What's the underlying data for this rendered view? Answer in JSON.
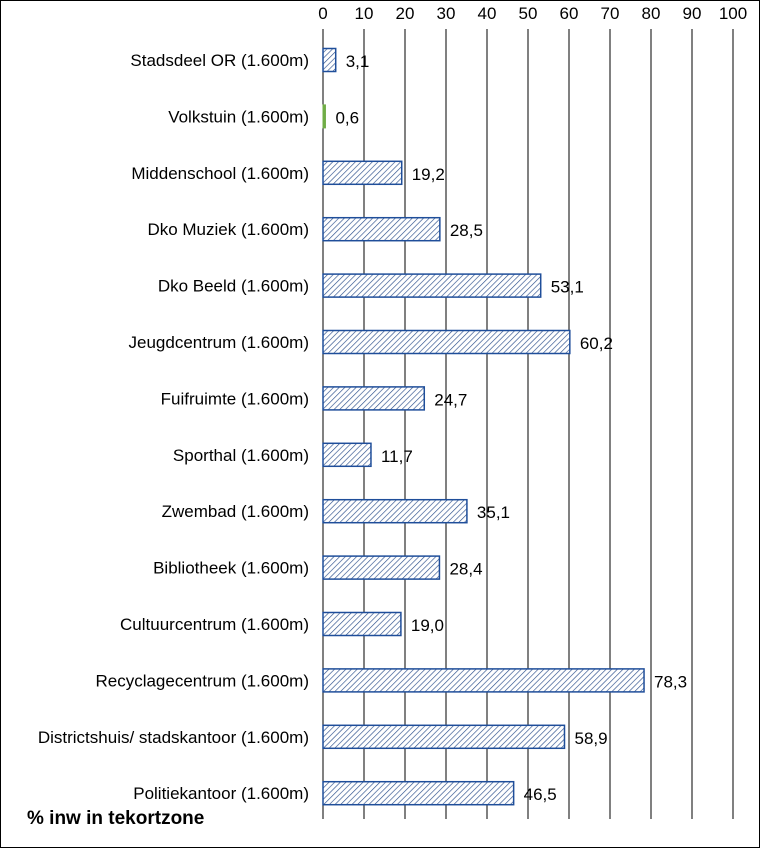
{
  "chart_data": {
    "type": "bar",
    "orientation": "horizontal",
    "x_axis_position": "top",
    "xlim": [
      0,
      100
    ],
    "x_ticks": [
      0,
      10,
      20,
      30,
      40,
      50,
      60,
      70,
      80,
      90,
      100
    ],
    "grid": true,
    "xlabel": "",
    "ylabel": "",
    "annotation": "% inw in tekortzone",
    "categories": [
      "Stadsdeel OR (1.600m)",
      "Volkstuin (1.600m)",
      "Middenschool (1.600m)",
      "Dko Muziek (1.600m)",
      "Dko Beeld (1.600m)",
      "Jeugdcentrum (1.600m)",
      "Fuifruimte (1.600m)",
      "Sporthal (1.600m)",
      "Zwembad (1.600m)",
      "Bibliotheek (1.600m)",
      "Cultuurcentrum (1.600m)",
      "Recyclagecentrum (1.600m)",
      "Districtshuis/ stadskantoor (1.600m)",
      "Politiekantoor (1.600m)"
    ],
    "values": [
      3.1,
      0.6,
      19.2,
      28.5,
      53.1,
      60.2,
      24.7,
      11.7,
      35.1,
      28.4,
      19.0,
      78.3,
      58.9,
      46.5
    ],
    "value_labels": [
      "3,1",
      "0,6",
      "19,2",
      "28,5",
      "53,1",
      "60,2",
      "24,7",
      "11,7",
      "35,1",
      "28,4",
      "19,0",
      "78,3",
      "58,9",
      "46,5"
    ],
    "bar_style": {
      "hatched": [
        "Stadsdeel OR (1.600m)",
        "Middenschool (1.600m)",
        "Dko Muziek (1.600m)",
        "Dko Beeld (1.600m)",
        "Jeugdcentrum (1.600m)",
        "Fuifruimte (1.600m)",
        "Sporthal (1.600m)",
        "Zwembad (1.600m)",
        "Bibliotheek (1.600m)",
        "Cultuurcentrum (1.600m)",
        "Recyclagecentrum (1.600m)",
        "Districtshuis/ stadskantoor (1.600m)",
        "Politiekantoor (1.600m)"
      ],
      "solid": [
        "Volkstuin (1.600m)"
      ]
    },
    "colors": {
      "bar_outline": "#1f4e9a",
      "hatch_line": "#2b4f8c",
      "bar_fill": "#ffffff",
      "solid_bar": "#70ad47",
      "gridline": "#000000",
      "text": "#000000"
    }
  }
}
